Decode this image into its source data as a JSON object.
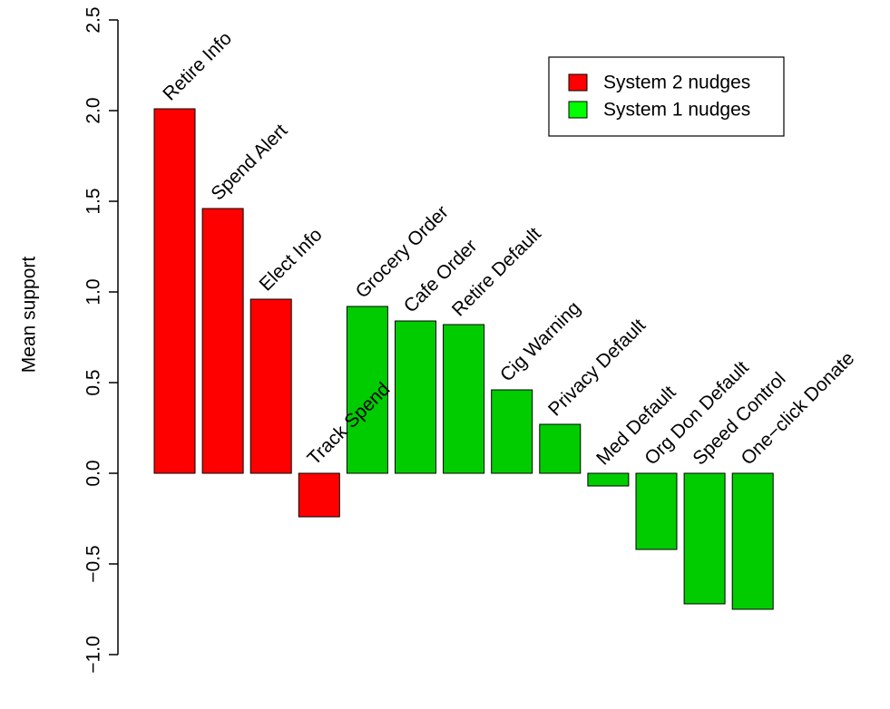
{
  "chart_data": {
    "type": "bar",
    "title": "",
    "xlabel": "",
    "ylabel": "Mean support",
    "ylim": [
      -1.0,
      2.5
    ],
    "yticks": [
      "−1.0",
      "−0.5",
      "0.0",
      "0.5",
      "1.0",
      "1.5",
      "2.0",
      "2.5"
    ],
    "ytick_values": [
      -1.0,
      -0.5,
      0.0,
      0.5,
      1.0,
      1.5,
      2.0,
      2.5
    ],
    "grid": false,
    "legend_placement": "top-right",
    "legend": [
      {
        "label": "System 2 nudges",
        "color": "#ff0000"
      },
      {
        "label": "System 1 nudges",
        "color": "#00ff00"
      }
    ],
    "bar_colors": {
      "System 2": "#ff0000",
      "System 1": "#00cc00"
    },
    "categories": [
      "Retire Info",
      "Spend Alert",
      "Elect Info",
      "Track Spend",
      "Grocery Order",
      "Cafe Order",
      "Retire Default",
      "Cig Warning",
      "Privacy Default",
      "Med Default",
      "Org Don Default",
      "Speed Control",
      "One−click Donate"
    ],
    "groups": [
      "System 2",
      "System 2",
      "System 2",
      "System 2",
      "System 1",
      "System 1",
      "System 1",
      "System 1",
      "System 1",
      "System 1",
      "System 1",
      "System 1",
      "System 1"
    ],
    "values": [
      2.01,
      1.46,
      0.96,
      -0.24,
      0.92,
      0.84,
      0.82,
      0.46,
      0.27,
      -0.07,
      -0.42,
      -0.72,
      -0.75
    ]
  }
}
